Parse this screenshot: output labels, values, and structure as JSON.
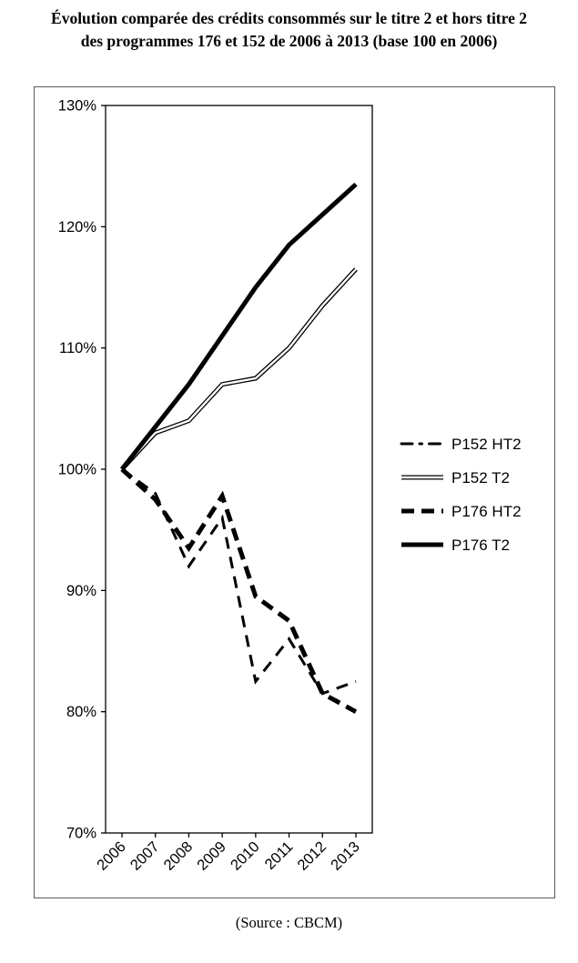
{
  "title": {
    "line1": "Évolution comparée des crédits consommés sur le titre 2 et hors titre 2",
    "line2": "des programmes 176 et 152 de 2006 à 2013 (base 100 en 2006)"
  },
  "source": "(Source : CBCM)",
  "chart_data": {
    "type": "line",
    "x": [
      "2006",
      "2007",
      "2008",
      "2009",
      "2010",
      "2011",
      "2012",
      "2013"
    ],
    "series": [
      {
        "name": "P152 HT2",
        "style": "thin-dashed",
        "values": [
          100,
          98,
          92,
          96,
          82.5,
          86,
          81.5,
          82.5
        ]
      },
      {
        "name": "P152 T2",
        "style": "thin-double",
        "values": [
          100,
          103,
          104,
          107,
          107.5,
          110,
          113.5,
          116.5
        ]
      },
      {
        "name": "P176 HT2",
        "style": "thick-dashed",
        "values": [
          100,
          97.5,
          93.5,
          97.8,
          89.5,
          87.5,
          81.5,
          80
        ]
      },
      {
        "name": "P176 T2",
        "style": "thick-solid",
        "values": [
          100,
          103.5,
          107,
          111,
          115,
          118.5,
          121,
          123.5
        ]
      }
    ],
    "ylim": [
      70,
      130
    ],
    "yticks": [
      70,
      80,
      90,
      100,
      110,
      120,
      130
    ],
    "ytick_suffix": "%",
    "line_color": "#000000",
    "grid": false,
    "legend_position": "right"
  }
}
